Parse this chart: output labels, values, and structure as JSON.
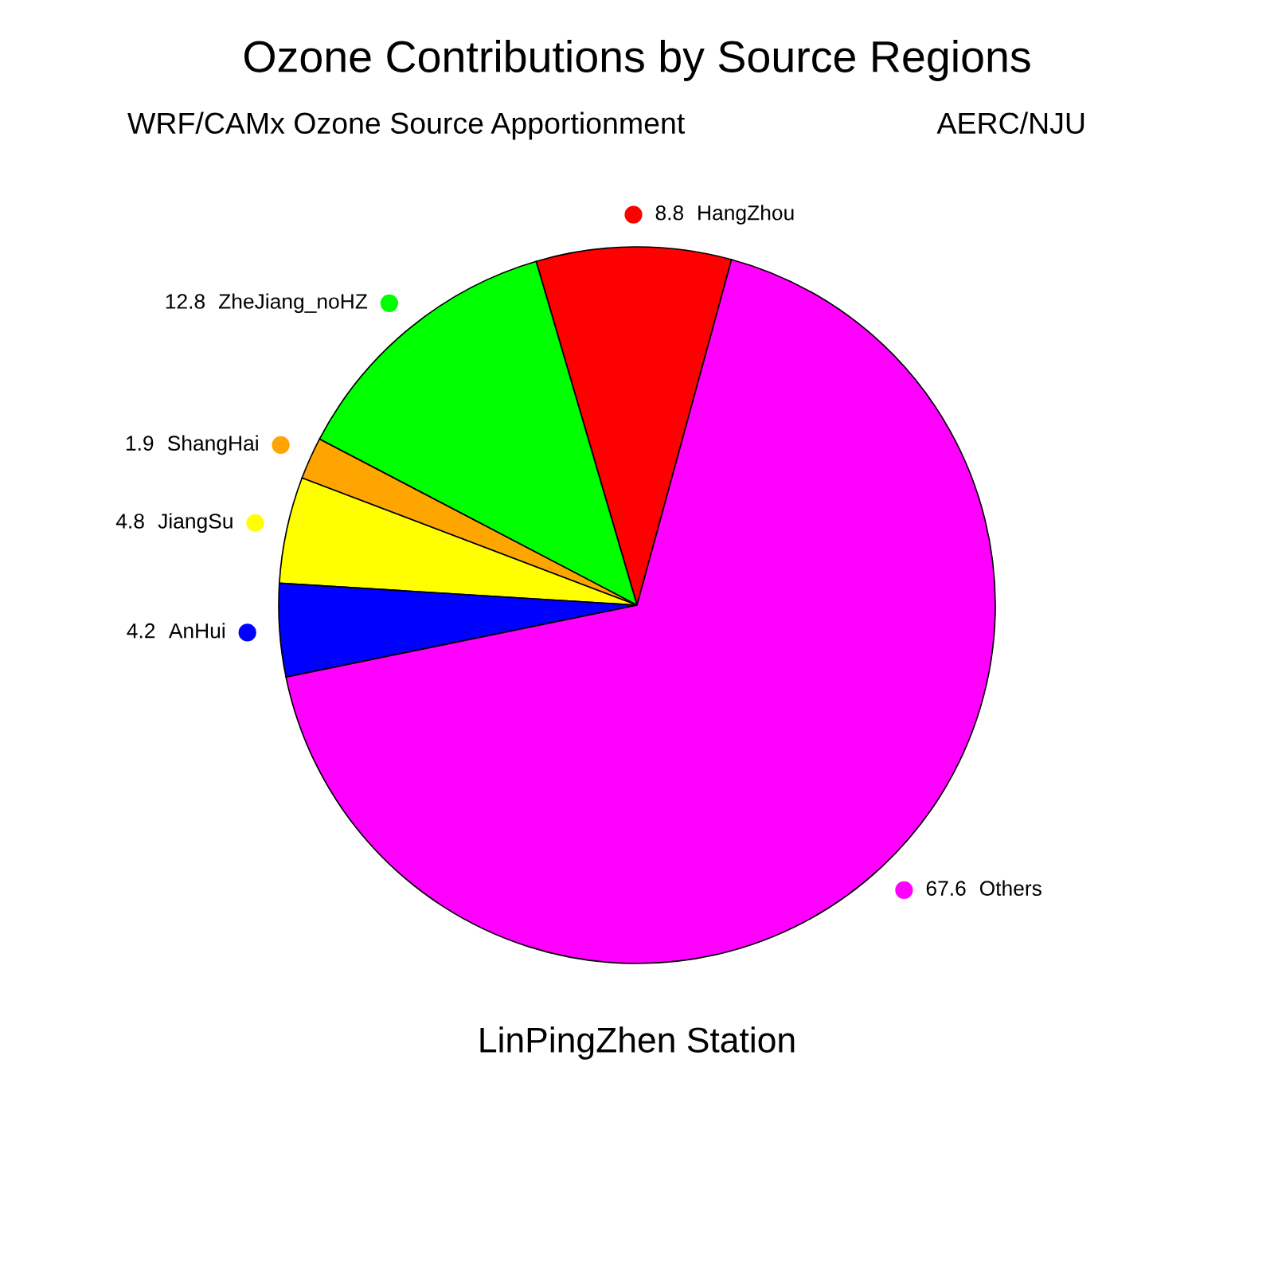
{
  "chart_data": {
    "type": "pie",
    "title": "Ozone Contributions by Source Regions",
    "subtitle": "WRF/CAMx Ozone Source Apportionment",
    "annotations": [
      "AERC/NJU"
    ],
    "xlabel": "LinPingZhen Station",
    "categories": [
      "HangZhou",
      "ZheJiang_noHZ",
      "ShangHai",
      "JiangSu",
      "AnHui",
      "Others"
    ],
    "values": [
      8.8,
      12.8,
      1.9,
      4.8,
      4.2,
      67.6
    ],
    "colors": [
      "#ff0000",
      "#00ff00",
      "#ffa500",
      "#ffff00",
      "#0000ff",
      "#ff00ff"
    ],
    "data_labels": true,
    "legend": "left"
  }
}
